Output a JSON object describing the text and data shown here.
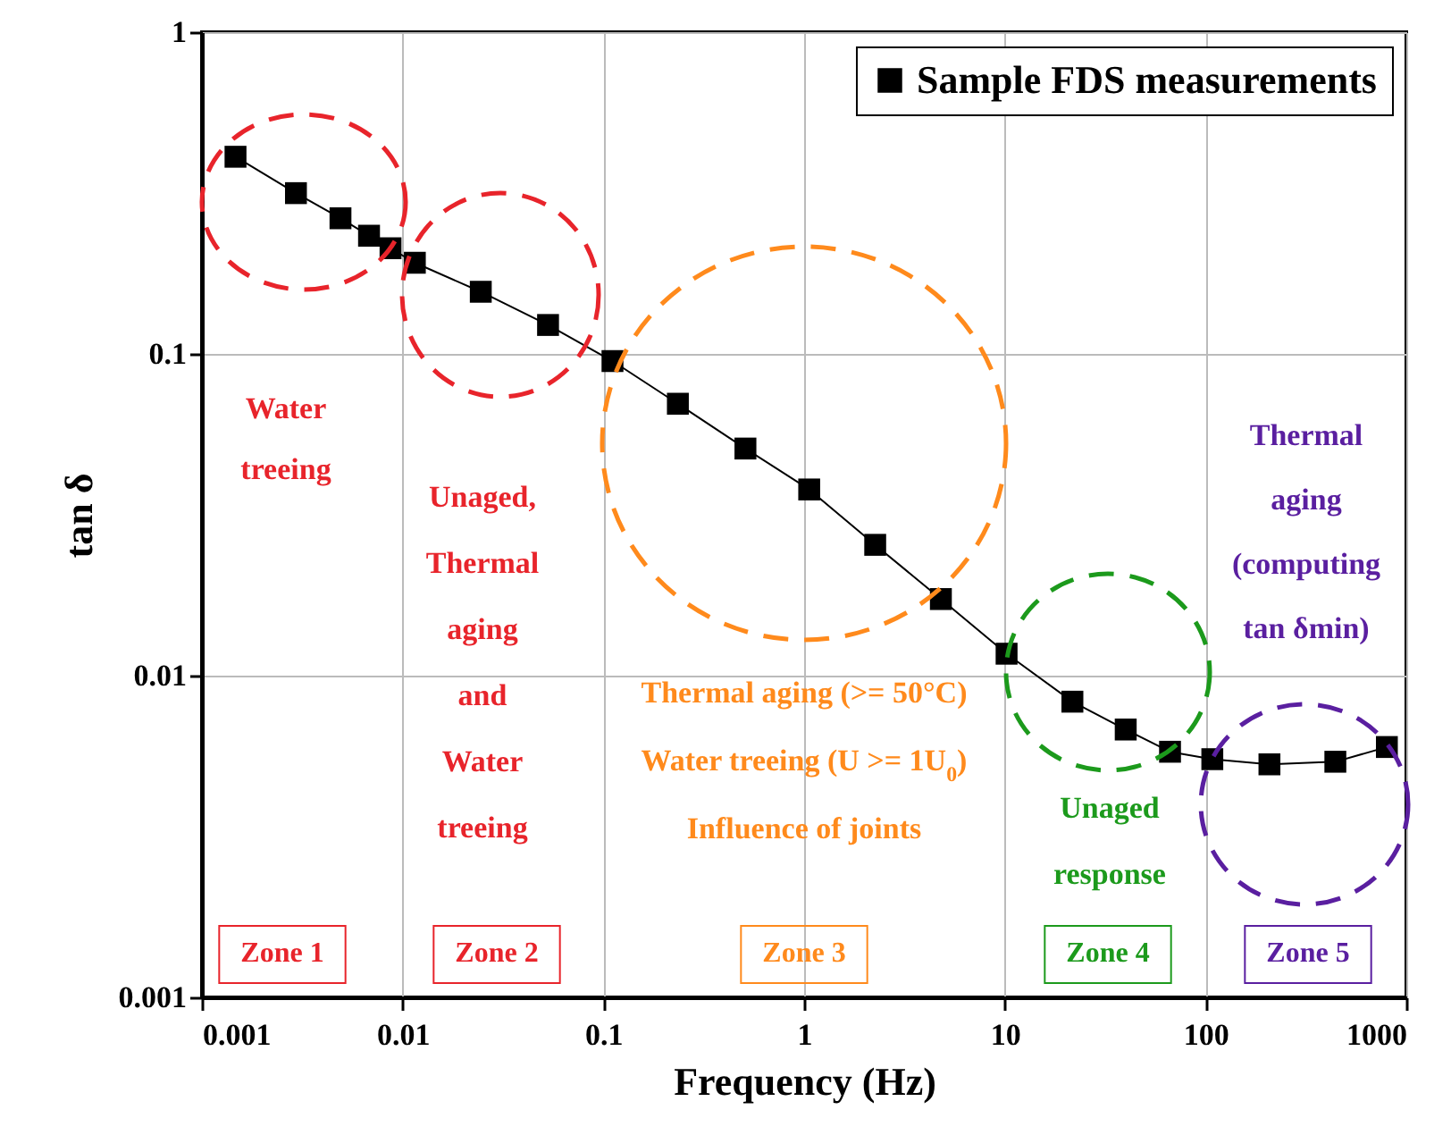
{
  "chart_data": {
    "type": "line",
    "xlabel": "Frequency (Hz)",
    "ylabel": "tan δ",
    "log": "xy",
    "grid": true,
    "legend": "top right",
    "marker": "square",
    "line_style": "solid",
    "x": [
      0.00147,
      0.00294,
      0.0049,
      0.0068,
      0.0087,
      0.0115,
      0.0245,
      0.053,
      0.111,
      0.235,
      0.51,
      1.06,
      2.26,
      4.8,
      10.2,
      21.7,
      40,
      66.5,
      108,
      208,
      443,
      800
    ],
    "series": [
      {
        "name": "Sample FDS measurements",
        "color": "#000000",
        "values": [
          0.41,
          0.316,
          0.264,
          0.233,
          0.213,
          0.192,
          0.156,
          0.123,
          0.095,
          0.07,
          0.0508,
          0.0379,
          0.0255,
          0.0173,
          0.0117,
          0.0083,
          0.0068,
          0.0058,
          0.0055,
          0.0053,
          0.0054,
          0.006
        ]
      }
    ],
    "xlim": [
      0.001,
      1000
    ],
    "ylim": [
      0.001,
      1
    ],
    "xticks": [
      0.001,
      0.01,
      0.1,
      1,
      10,
      100,
      1000
    ],
    "yticks": [
      0.001,
      0.01,
      0.1,
      1
    ],
    "annotations": [
      "Water\ntreeing",
      "Unaged,\nThermal\naging\nand\nWater\ntreeing",
      "Thermal aging (>= 50°C)\nWater treeing (U >= 1U$_{0}$)\nInfluence of joints",
      "Unaged\nresponse",
      "Thermal\naging\n(computing\ntan δmin)",
      "Zone 1",
      "Zone 2",
      "Zone 3",
      "Zone 4",
      "Zone 5"
    ]
  }
}
